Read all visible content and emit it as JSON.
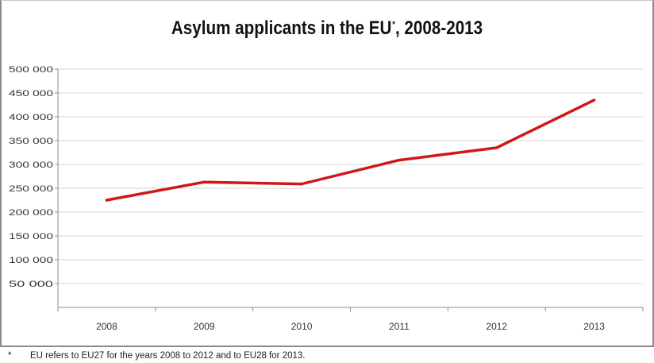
{
  "chart_data": {
    "type": "line",
    "title_text": "Asylum applicants in the EU",
    "title_marker": "*",
    "title_years": ", 2008-2013",
    "categories": [
      "2008",
      "2009",
      "2010",
      "2011",
      "2012",
      "2013"
    ],
    "series": [
      {
        "values": [
          225000,
          263000,
          259000,
          309000,
          335000,
          435000
        ],
        "color": "#d01818"
      }
    ],
    "ylim": [
      0,
      500000
    ],
    "ytick_values": [
      50000,
      100000,
      150000,
      200000,
      250000,
      300000,
      350000,
      400000,
      450000,
      500000
    ],
    "ytick_labels": [
      "50 000",
      "100 000",
      "150 000",
      "200 000",
      "250 000",
      "300 000",
      "350 000",
      "400 000",
      "450 000",
      "500 000"
    ],
    "grid": true,
    "xlabel": "",
    "ylabel": ""
  },
  "footnote": {
    "marker": "*",
    "text": "EU refers to EU27 for the years 2008 to 2012 and to EU28 for 2013."
  }
}
